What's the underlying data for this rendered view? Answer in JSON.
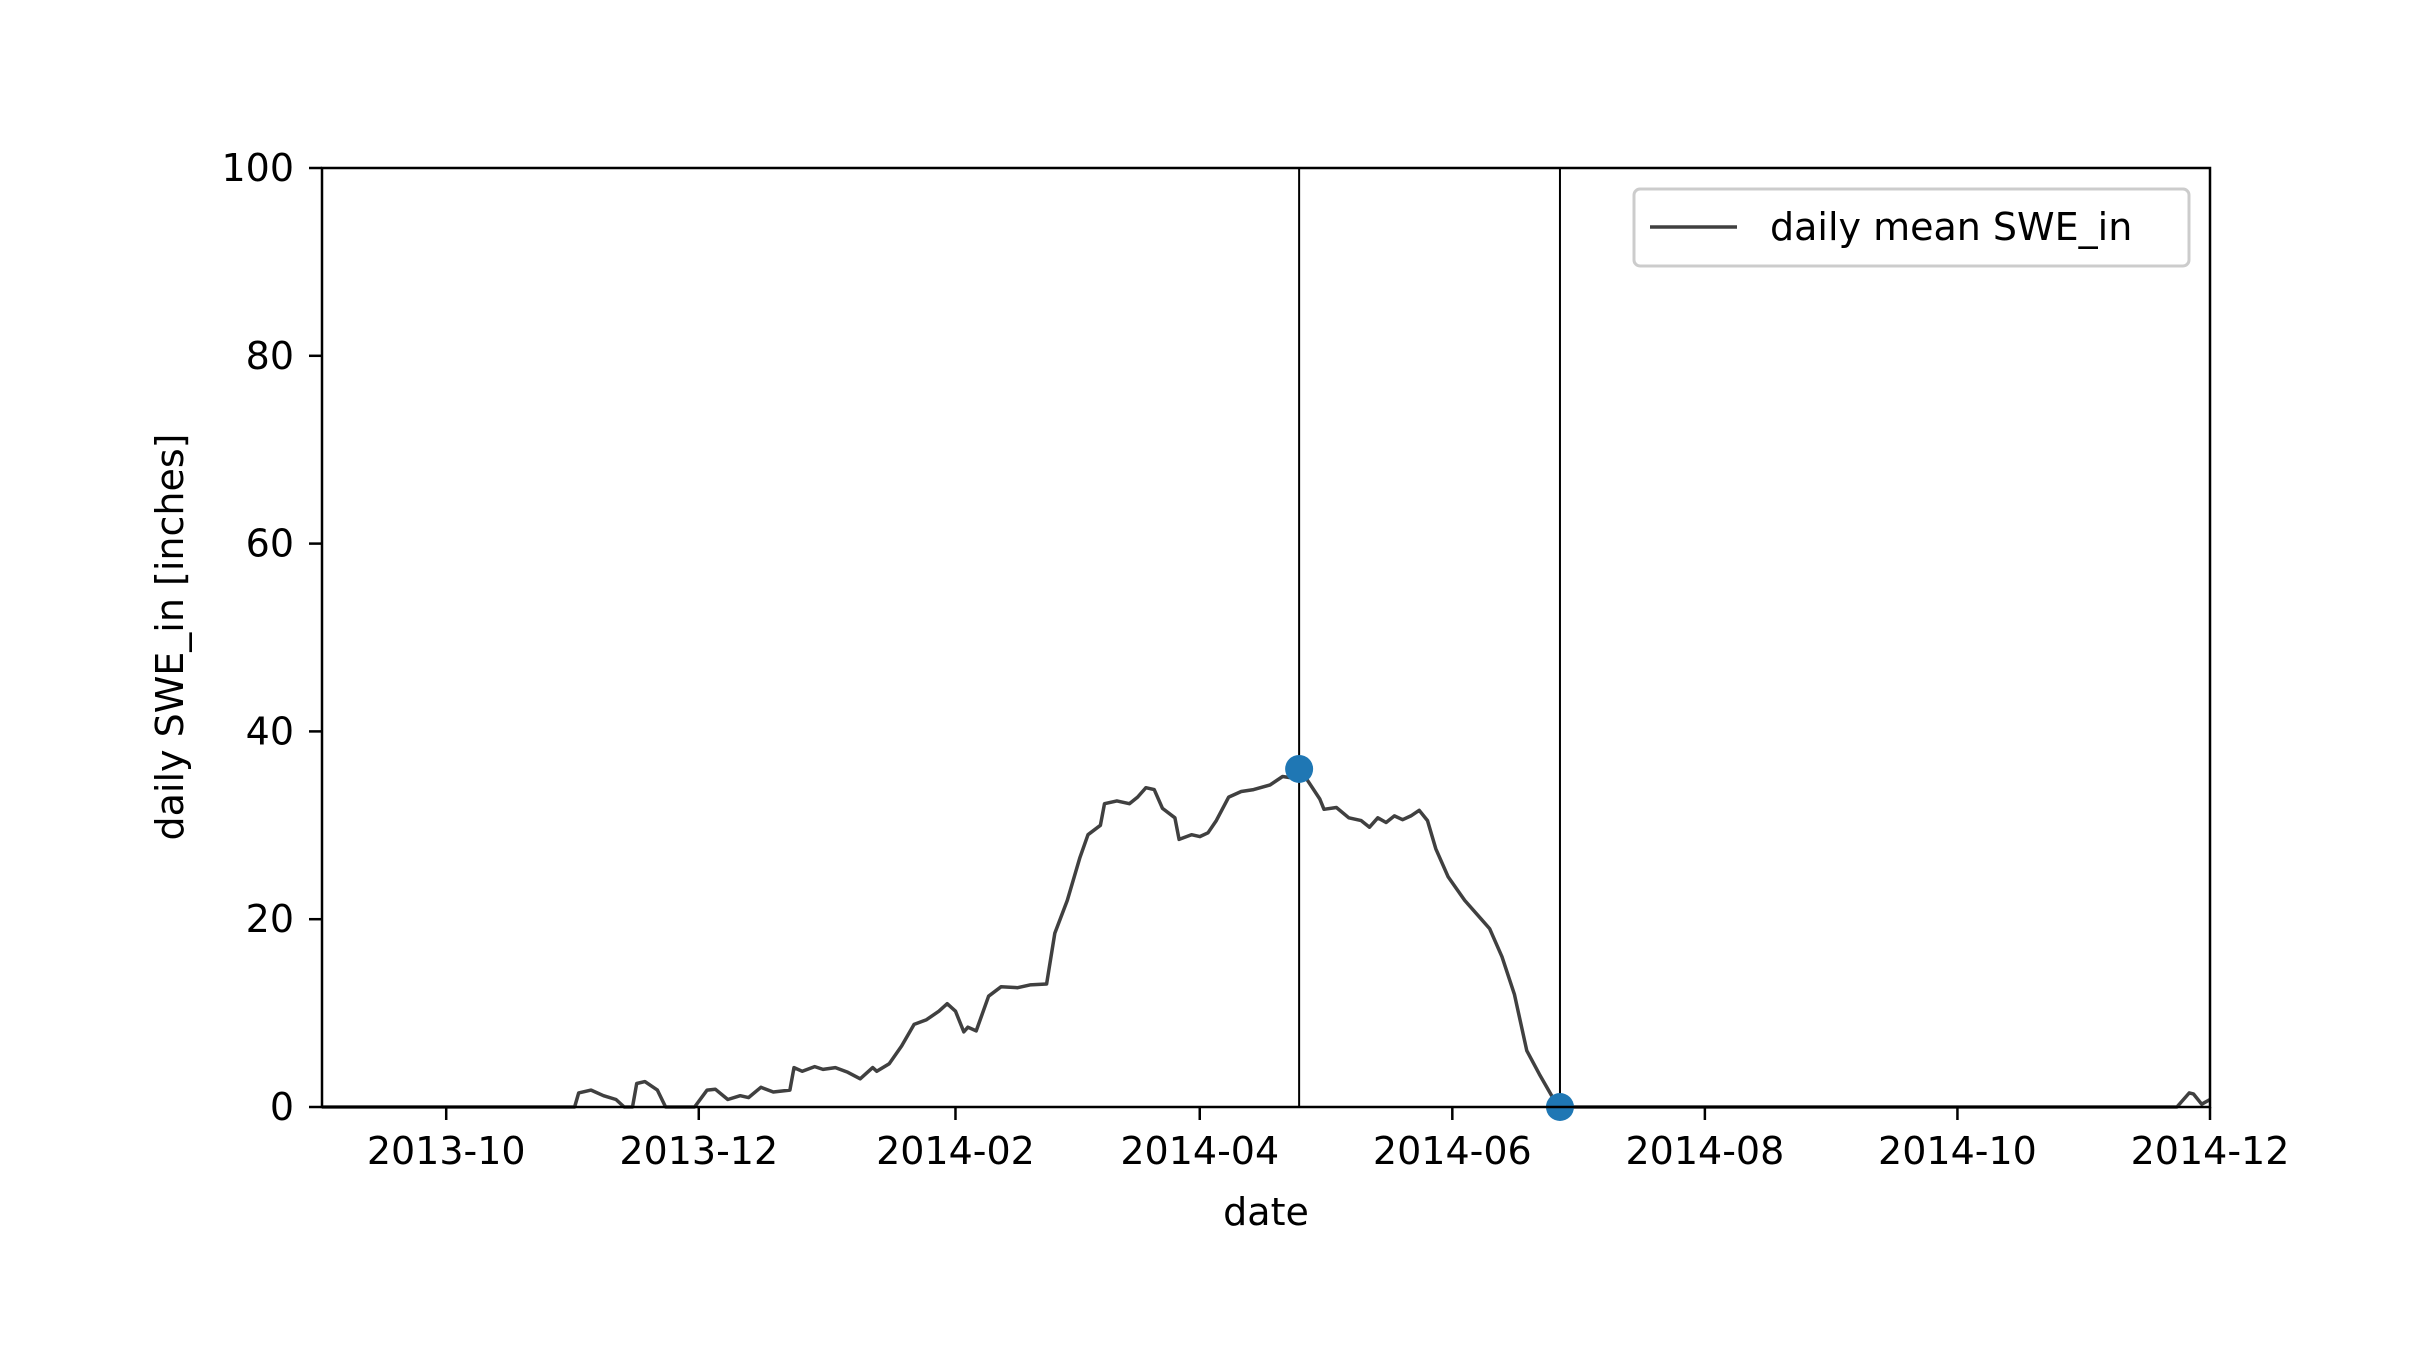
{
  "chart_data": {
    "type": "line",
    "xlabel": "date",
    "ylabel": "daily SWE_in [inches]",
    "xlim": [
      "2013-09-01",
      "2014-12-01"
    ],
    "ylim": [
      0,
      100
    ],
    "x_ticks": [
      "2013-10",
      "2013-12",
      "2014-02",
      "2014-04",
      "2014-06",
      "2014-08",
      "2014-10",
      "2014-12"
    ],
    "y_ticks": [
      0,
      20,
      40,
      60,
      80,
      100
    ],
    "legend": {
      "position": "upper right",
      "entries": [
        "daily mean SWE_in"
      ]
    },
    "grid": false,
    "series": [
      {
        "name": "daily mean SWE_in",
        "color": "#404040",
        "points": [
          [
            "2013-09-01",
            0
          ],
          [
            "2013-11-01",
            0
          ],
          [
            "2013-11-02",
            1.5
          ],
          [
            "2013-11-05",
            1.8
          ],
          [
            "2013-11-08",
            1.2
          ],
          [
            "2013-11-11",
            0.8
          ],
          [
            "2013-11-13",
            0
          ],
          [
            "2013-11-15",
            0
          ],
          [
            "2013-11-16",
            2.5
          ],
          [
            "2013-11-18",
            2.7
          ],
          [
            "2013-11-21",
            1.8
          ],
          [
            "2013-11-23",
            0
          ],
          [
            "2013-11-30",
            0
          ],
          [
            "2013-12-03",
            1.8
          ],
          [
            "2013-12-05",
            1.9
          ],
          [
            "2013-12-08",
            0.8
          ],
          [
            "2013-12-11",
            1.2
          ],
          [
            "2013-12-13",
            1.0
          ],
          [
            "2013-12-16",
            2.1
          ],
          [
            "2013-12-19",
            1.6
          ],
          [
            "2013-12-23",
            1.8
          ],
          [
            "2013-12-24",
            4.2
          ],
          [
            "2013-12-26",
            3.8
          ],
          [
            "2013-12-29",
            4.3
          ],
          [
            "2013-12-31",
            4.0
          ],
          [
            "2014-01-03",
            4.2
          ],
          [
            "2014-01-06",
            3.7
          ],
          [
            "2014-01-09",
            3.0
          ],
          [
            "2014-01-12",
            4.2
          ],
          [
            "2014-01-13",
            3.8
          ],
          [
            "2014-01-16",
            4.6
          ],
          [
            "2014-01-19",
            6.5
          ],
          [
            "2014-01-22",
            8.8
          ],
          [
            "2014-01-25",
            9.3
          ],
          [
            "2014-01-28",
            10.2
          ],
          [
            "2014-01-30",
            11.0
          ],
          [
            "2014-02-01",
            10.2
          ],
          [
            "2014-02-03",
            8.0
          ],
          [
            "2014-02-04",
            8.5
          ],
          [
            "2014-02-06",
            8.1
          ],
          [
            "2014-02-09",
            11.8
          ],
          [
            "2014-02-12",
            12.8
          ],
          [
            "2014-02-16",
            12.7
          ],
          [
            "2014-02-19",
            13.0
          ],
          [
            "2014-02-23",
            13.1
          ],
          [
            "2014-02-25",
            18.5
          ],
          [
            "2014-02-28",
            22.0
          ],
          [
            "2014-03-03",
            26.5
          ],
          [
            "2014-03-05",
            29.0
          ],
          [
            "2014-03-08",
            30.0
          ],
          [
            "2014-03-09",
            32.3
          ],
          [
            "2014-03-12",
            32.6
          ],
          [
            "2014-03-15",
            32.3
          ],
          [
            "2014-03-17",
            33.0
          ],
          [
            "2014-03-19",
            34.0
          ],
          [
            "2014-03-21",
            33.8
          ],
          [
            "2014-03-23",
            31.8
          ],
          [
            "2014-03-26",
            30.8
          ],
          [
            "2014-03-27",
            28.5
          ],
          [
            "2014-03-30",
            29.0
          ],
          [
            "2014-04-01",
            28.8
          ],
          [
            "2014-04-03",
            29.2
          ],
          [
            "2014-04-05",
            30.5
          ],
          [
            "2014-04-08",
            33.0
          ],
          [
            "2014-04-11",
            33.6
          ],
          [
            "2014-04-14",
            33.8
          ],
          [
            "2014-04-18",
            34.3
          ],
          [
            "2014-04-21",
            35.2
          ],
          [
            "2014-04-24",
            35.0
          ],
          [
            "2014-04-25",
            36.0
          ],
          [
            "2014-04-27",
            34.8
          ],
          [
            "2014-04-30",
            32.8
          ],
          [
            "2014-05-01",
            31.7
          ],
          [
            "2014-05-04",
            31.9
          ],
          [
            "2014-05-07",
            30.8
          ],
          [
            "2014-05-10",
            30.5
          ],
          [
            "2014-05-12",
            29.8
          ],
          [
            "2014-05-14",
            30.8
          ],
          [
            "2014-05-16",
            30.3
          ],
          [
            "2014-05-18",
            31.0
          ],
          [
            "2014-05-20",
            30.6
          ],
          [
            "2014-05-22",
            31.0
          ],
          [
            "2014-05-24",
            31.6
          ],
          [
            "2014-05-26",
            30.5
          ],
          [
            "2014-05-28",
            27.5
          ],
          [
            "2014-05-31",
            24.5
          ],
          [
            "2014-06-04",
            22.0
          ],
          [
            "2014-06-08",
            20.0
          ],
          [
            "2014-06-10",
            19.0
          ],
          [
            "2014-06-13",
            16.0
          ],
          [
            "2014-06-16",
            12.0
          ],
          [
            "2014-06-19",
            6.0
          ],
          [
            "2014-06-22",
            3.5
          ],
          [
            "2014-06-25",
            1.2
          ],
          [
            "2014-06-27",
            0
          ],
          [
            "2014-11-23",
            0
          ],
          [
            "2014-11-26",
            1.5
          ],
          [
            "2014-11-27",
            1.4
          ],
          [
            "2014-11-29",
            0.3
          ],
          [
            "2014-12-01",
            0.8
          ]
        ]
      }
    ],
    "markers": [
      {
        "date": "2014-04-25",
        "value": 36.0,
        "color": "#1f77b4"
      },
      {
        "date": "2014-06-27",
        "value": 0,
        "color": "#1f77b4"
      }
    ],
    "vertical_lines": [
      "2014-04-25",
      "2014-06-27"
    ]
  }
}
